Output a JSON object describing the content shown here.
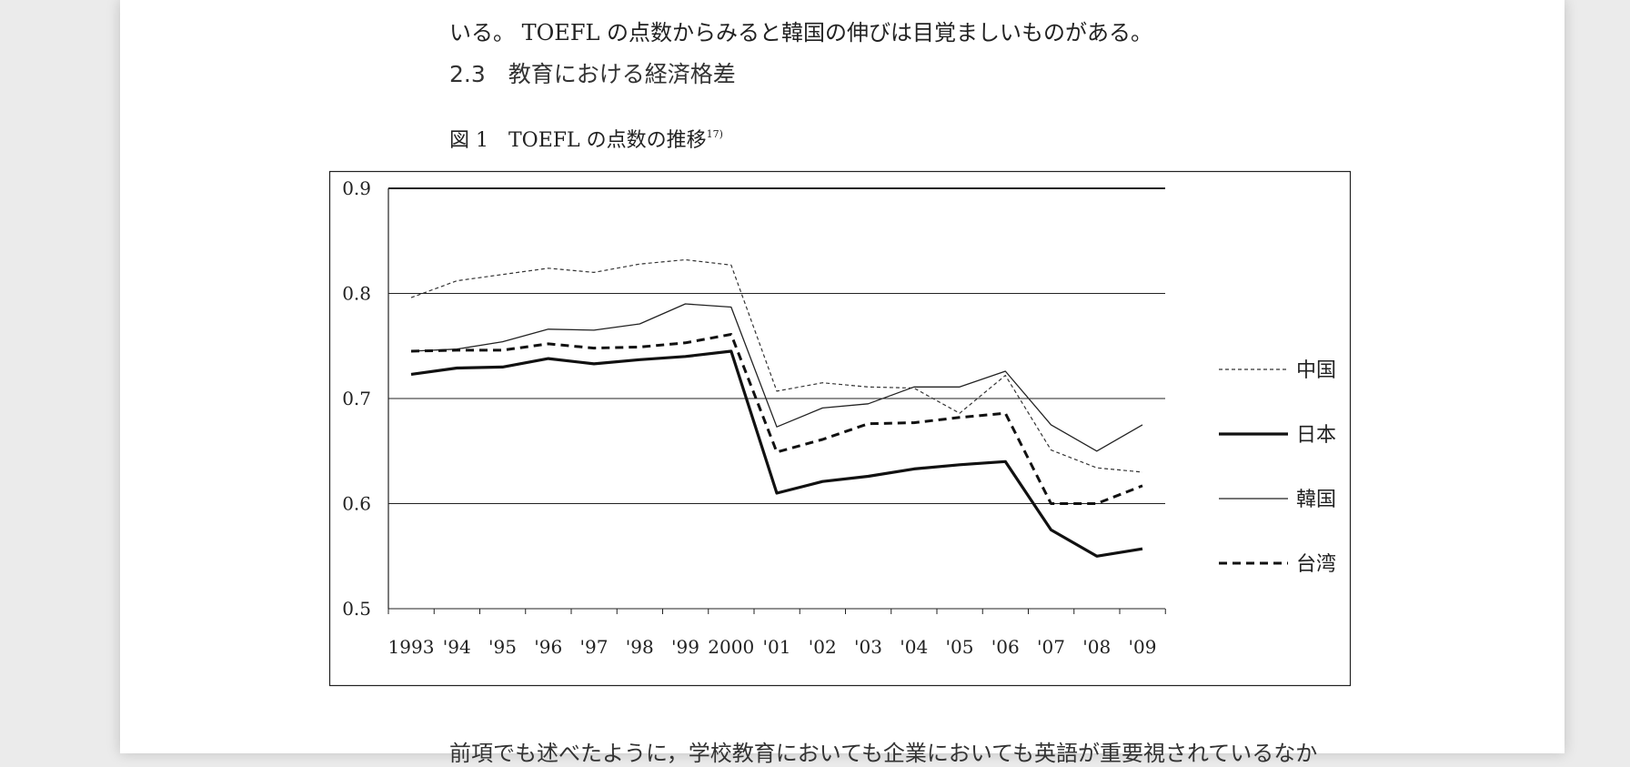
{
  "document": {
    "top_line": "いる。 TOEFL の点数からみると韓国の伸びは目覚ましいものがある。",
    "section_heading": "2.3　教育における経済格差",
    "figure_label": "図 1　TOEFL の点数の推移",
    "figure_footnote": "17)",
    "bottom_line": "前項でも述べたように，学校教育においても企業においても英語が重要視されているなか"
  },
  "chart_data": {
    "type": "line",
    "categories": [
      "1993",
      "'94",
      "'95",
      "'96",
      "'97",
      "'98",
      "'99",
      "2000",
      "'01",
      "'02",
      "'03",
      "'04",
      "'05",
      "'06",
      "'07",
      "'08",
      "'09"
    ],
    "ylim": [
      0.5,
      0.9
    ],
    "yticks": [
      "0.9",
      "0.8",
      "0.7",
      "0.6",
      "0.5"
    ],
    "grid": true,
    "legend_position": "right",
    "series": [
      {
        "name": "中国",
        "style": "thin-dotted",
        "values": [
          0.796,
          0.812,
          0.818,
          0.824,
          0.82,
          0.828,
          0.832,
          0.827,
          0.707,
          0.715,
          0.711,
          0.71,
          0.686,
          0.722,
          0.651,
          0.634,
          0.63
        ]
      },
      {
        "name": "日本",
        "style": "thick-solid",
        "values": [
          0.723,
          0.729,
          0.73,
          0.738,
          0.733,
          0.737,
          0.74,
          0.745,
          0.61,
          0.621,
          0.626,
          0.633,
          0.637,
          0.64,
          0.575,
          0.55,
          0.557
        ]
      },
      {
        "name": "韓国",
        "style": "thin-solid",
        "values": [
          0.745,
          0.747,
          0.754,
          0.766,
          0.765,
          0.771,
          0.79,
          0.787,
          0.673,
          0.691,
          0.695,
          0.711,
          0.711,
          0.726,
          0.675,
          0.65,
          0.675
        ]
      },
      {
        "name": "台湾",
        "style": "thick-dashed",
        "values": [
          0.745,
          0.746,
          0.746,
          0.752,
          0.748,
          0.749,
          0.753,
          0.761,
          0.649,
          0.661,
          0.676,
          0.677,
          0.682,
          0.686,
          0.6,
          0.6,
          0.617
        ]
      }
    ]
  }
}
